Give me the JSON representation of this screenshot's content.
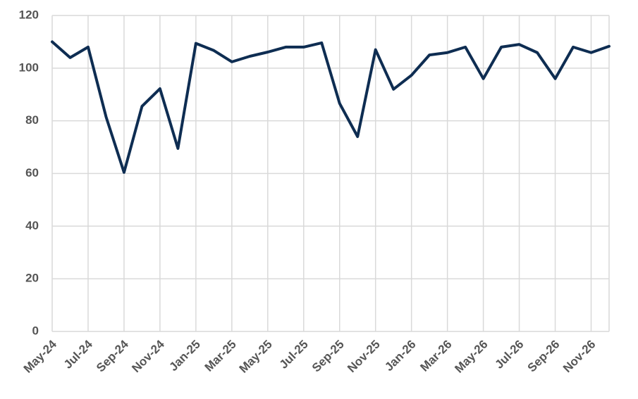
{
  "chart_data": {
    "type": "line",
    "categories": [
      "May-24",
      null,
      "Jul-24",
      null,
      "Sep-24",
      null,
      "Nov-24",
      null,
      "Jan-25",
      null,
      "Mar-25",
      null,
      "May-25",
      null,
      "Jul-25",
      null,
      "Sep-25",
      null,
      "Nov-25",
      null,
      "Jan-26",
      null,
      "Mar-26",
      null,
      "May-26",
      null,
      "Jul-26",
      null,
      "Sep-26",
      null,
      "Nov-26",
      null
    ],
    "series": [
      {
        "name": null,
        "color": "#0e2d52",
        "values": [
          110,
          104,
          108,
          81.5,
          60.4,
          85.5,
          92.2,
          69.5,
          109.4,
          106.7,
          102.4,
          104.5,
          106.1,
          108,
          108,
          109.6,
          86.6,
          74,
          107,
          92,
          97.3,
          105,
          105.9,
          108,
          96,
          108,
          109,
          105.9,
          96,
          108,
          105.9,
          108.3
        ]
      }
    ],
    "ylim": [
      0,
      120
    ],
    "yticks": [
      0,
      20,
      40,
      60,
      80,
      100,
      120
    ],
    "grid": true
  }
}
